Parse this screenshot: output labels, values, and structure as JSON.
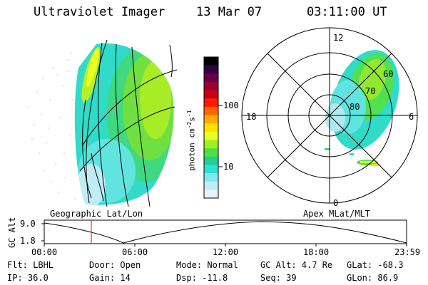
{
  "header": {
    "title": "Ultraviolet Imager",
    "date": "13 Mar 07",
    "time": "03:11:00 UT"
  },
  "colorbar": {
    "unit_label": "photon cm",
    "unit_exp1": "-2",
    "unit_mid": "s",
    "unit_exp2": "-1",
    "tick_high": "100",
    "tick_low": "10",
    "colors": [
      "#000000",
      "#330044",
      "#66004a",
      "#990033",
      "#cc0011",
      "#ff1a00",
      "#ff6600",
      "#ffaa00",
      "#ffe000",
      "#e8ff20",
      "#a0f020",
      "#50e040",
      "#20d090",
      "#30e0d0",
      "#80e8f0",
      "#c0ecf4",
      "#e6f2f6"
    ]
  },
  "geo_panel": {
    "label": "Geographic Lat/Lon"
  },
  "polar_panel": {
    "label": "Apex MLat/MLT",
    "mlt_labels": {
      "top": "12",
      "left": "18",
      "right": "6",
      "bottom": "0"
    },
    "lat_labels": [
      "60",
      "70",
      "80"
    ]
  },
  "altitude_plot": {
    "ylabel": "GC Alt",
    "ytick_high": "9.0",
    "ytick_low": "1.8",
    "xticks": [
      "00:00",
      "06:00",
      "12:00",
      "18:00",
      "23:59"
    ],
    "marker_time": "03:11",
    "marker_color": "#ff0000"
  },
  "info": {
    "flt": "Flt: LBHL",
    "ip": "IP: 36.0",
    "door": "Door: Open",
    "gain": "Gain: 14",
    "mode": "Mode: Normal",
    "dsp": "Dsp:  -11.8",
    "gcalt": "GC Alt: 4.7 Re",
    "seq": "Seq: 39",
    "glat": "GLat: -68.3",
    "glon": "GLon:  86.9"
  }
}
